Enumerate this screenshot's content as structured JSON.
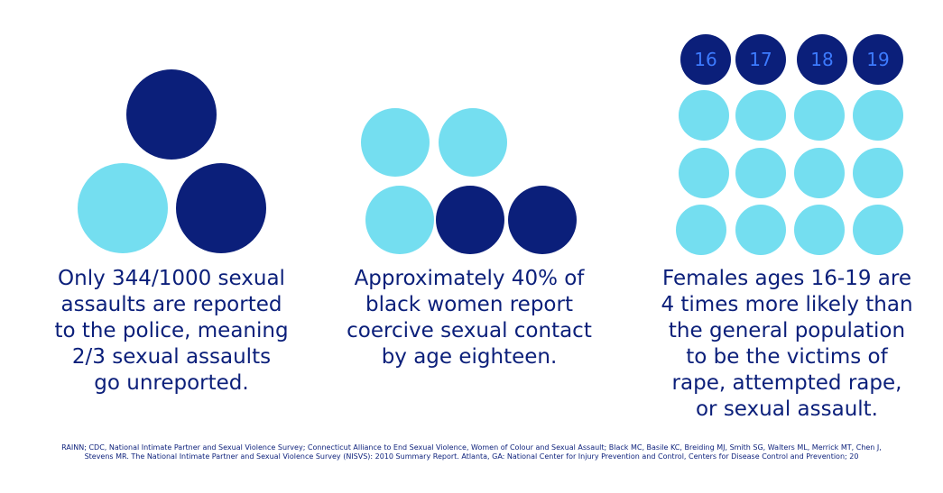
{
  "panels": {
    "reported": {
      "caption": "Only 344/1000 sexual\nassaults are reported\nto the  police, meaning\n2/3 sexual assaults\ngo unreported."
    },
    "coercive": {
      "caption": "Approximately 40% of\nblack women report\ncoercive sexual contact\nby age eighteen."
    },
    "ages": {
      "age_labels": [
        "16",
        "17",
        "18",
        "19"
      ],
      "caption": "Females ages 16-19 are\n4 times more likely than\nthe general population\nto be the victims of\nrape, attempted rape,\nor  sexual assault."
    }
  },
  "footnote": "RAINN; CDC, National Intimate Partner and Sexual Violence Survey; Connecticut Alliance to End Sexual Violence, Women of Colour and Sexual Assault; Black MC, Basile KC, Breiding MJ, Smith SG, Walters ML, Merrick MT, Chen J,\nStevens MR. The National Intimate Partner and Sexual Violence Survey (NISVS): 2010 Summary Report. Atlanta, GA: National Center for Injury Prevention and Control, Centers for Disease Control and Prevention; 20",
  "colors": {
    "dark_circle": "#0b1f7a",
    "light_circle": "#74def0",
    "age_number": "#3d7bff",
    "text": "#0b1f7a"
  }
}
